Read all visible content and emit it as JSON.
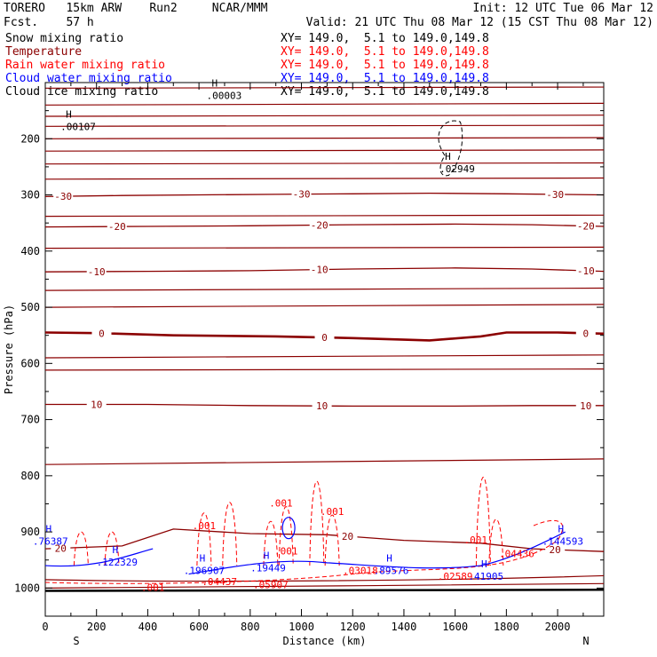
{
  "header": {
    "model": "TORERO   15km ARW    Run2     NCAR/MMM",
    "fcst": "Fcst.    57 h",
    "init": "Init: 12 UTC Tue 06 Mar 12",
    "valid": "Valid: 21 UTC Thu 08 Mar 12 (15 CST Thu 08 Mar 12)"
  },
  "legend": [
    {
      "name": "Snow mixing ratio",
      "xy": "XY= 149.0,  5.1 to 149.0,149.8",
      "color": "#000000"
    },
    {
      "name": "Temperature",
      "xy": "XY= 149.0,  5.1 to 149.0,149.8",
      "color": "#8b0000"
    },
    {
      "name": "Rain water mixing ratio",
      "xy": "XY= 149.0,  5.1 to 149.0,149.8",
      "color": "#ff0000"
    },
    {
      "name": "Cloud water mixing ratio",
      "xy": "XY= 149.0,  5.1 to 149.0,149.8",
      "color": "#0000ff"
    },
    {
      "name": "Cloud ice mixing ratio",
      "xy": "XY= 149.0,  5.1 to 149.0,149.8",
      "color": "#000000"
    }
  ],
  "chart_data": {
    "type": "contour",
    "xlabel": "Distance (km)",
    "ylabel": "Pressure (hPa)",
    "xlim": [
      0,
      2180
    ],
    "ylim": [
      1050,
      100
    ],
    "x_ticks": [
      0,
      200,
      400,
      600,
      800,
      1000,
      1200,
      1400,
      1600,
      1800,
      2000
    ],
    "y_ticks": [
      200,
      300,
      400,
      500,
      600,
      700,
      800,
      900,
      1000
    ],
    "x_end_labels": {
      "left": "S",
      "right": "N"
    },
    "temperature_contours": [
      {
        "label": "-30",
        "label_positions_x": [
          70,
          1000,
          1990
        ],
        "points": [
          [
            0,
            303
          ],
          [
            300,
            301
          ],
          [
            600,
            300
          ],
          [
            900,
            299
          ],
          [
            1200,
            298
          ],
          [
            1500,
            297
          ],
          [
            1800,
            298
          ],
          [
            2180,
            300
          ]
        ]
      },
      {
        "label": "-20",
        "label_positions_x": [
          280,
          1070,
          2110
        ],
        "points": [
          [
            0,
            357
          ],
          [
            400,
            356
          ],
          [
            800,
            355
          ],
          [
            1200,
            353
          ],
          [
            1600,
            352
          ],
          [
            1900,
            353
          ],
          [
            2180,
            356
          ]
        ]
      },
      {
        "label": "-10",
        "label_positions_x": [
          200,
          1070,
          2110
        ],
        "points": [
          [
            0,
            437
          ],
          [
            400,
            436
          ],
          [
            800,
            435
          ],
          [
            1200,
            432
          ],
          [
            1600,
            430
          ],
          [
            1900,
            432
          ],
          [
            2180,
            436
          ]
        ]
      },
      {
        "label": "0",
        "label_positions_x": [
          220,
          1090,
          2110
        ],
        "bold": true,
        "points": [
          [
            0,
            545
          ],
          [
            200,
            546
          ],
          [
            500,
            550
          ],
          [
            900,
            552
          ],
          [
            1200,
            555
          ],
          [
            1500,
            559
          ],
          [
            1700,
            552
          ],
          [
            1800,
            545
          ],
          [
            2000,
            545
          ],
          [
            2180,
            547
          ]
        ]
      },
      {
        "label": "10",
        "label_positions_x": [
          200,
          1080,
          2110
        ],
        "points": [
          [
            0,
            673
          ],
          [
            400,
            673
          ],
          [
            800,
            675
          ],
          [
            1200,
            676
          ],
          [
            1600,
            676
          ],
          [
            1900,
            675
          ],
          [
            2180,
            675
          ]
        ]
      },
      {
        "label": "20",
        "label_positions_x": [
          60,
          1180,
          1990
        ],
        "points": [
          [
            0,
            930
          ],
          [
            300,
            925
          ],
          [
            500,
            895
          ],
          [
            800,
            903
          ],
          [
            1100,
            905
          ],
          [
            1400,
            915
          ],
          [
            1700,
            920
          ],
          [
            1900,
            930
          ],
          [
            2180,
            935
          ]
        ]
      }
    ],
    "cloud_ice_maxima": [
      {
        "label": ".00003",
        "x": 650,
        "p": 120
      },
      {
        "label": ".00107",
        "x": 80,
        "p": 175
      },
      {
        "label": ".02949",
        "x": 1560,
        "p": 250
      }
    ],
    "rain_labels": [
      ".001",
      ".001",
      ".001",
      ".001",
      ".001",
      ".001",
      ".04437",
      ".05907",
      ".03018",
      ".02589",
      ".04436"
    ],
    "cloud_water_labels": [
      ".76387",
      ".122329",
      ".196907",
      ".19449",
      ".89576",
      ".41905",
      ".144593"
    ],
    "max_marker": "H"
  }
}
